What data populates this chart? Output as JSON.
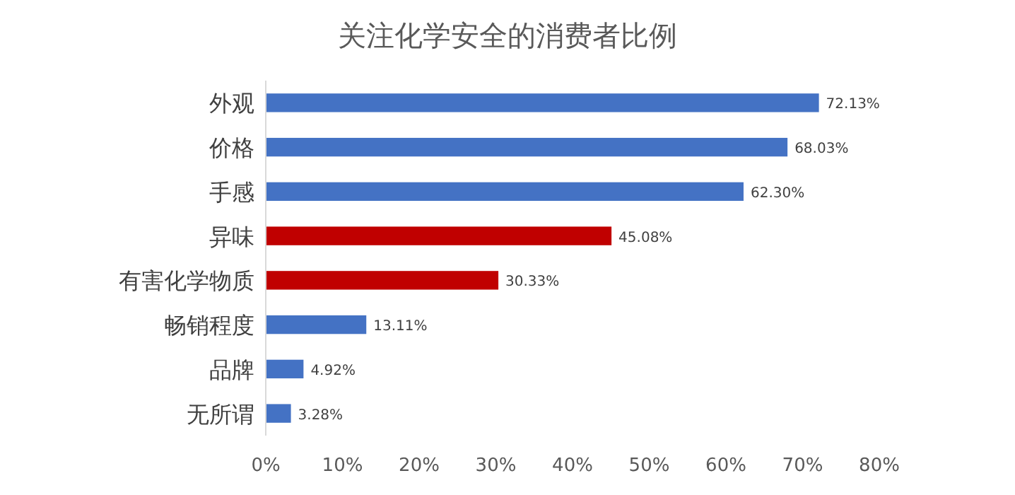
{
  "chart_data": {
    "type": "bar",
    "orientation": "horizontal",
    "title": "关注化学安全的消费者比例",
    "categories": [
      "外观",
      "价格",
      "手感",
      "异味",
      "有害化学物质",
      "畅销程度",
      "品牌",
      "无所谓"
    ],
    "values": [
      72.13,
      68.03,
      62.3,
      45.08,
      30.33,
      13.11,
      4.92,
      3.28
    ],
    "colors": [
      "#4472c4",
      "#4472c4",
      "#4472c4",
      "#c00000",
      "#c00000",
      "#4472c4",
      "#4472c4",
      "#4472c4"
    ],
    "value_labels": [
      "72.13%",
      "68.03%",
      "62.30%",
      "45.08%",
      "30.33%",
      "13.11%",
      "4.92%",
      "3.28%"
    ],
    "xlim": [
      0,
      80
    ],
    "xticks": [
      {
        "value": 0,
        "label": "0%"
      },
      {
        "value": 10,
        "label": "10%"
      },
      {
        "value": 20,
        "label": "20%"
      },
      {
        "value": 30,
        "label": "30%"
      },
      {
        "value": 40,
        "label": "40%"
      },
      {
        "value": 50,
        "label": "50%"
      },
      {
        "value": 60,
        "label": "60%"
      },
      {
        "value": 70,
        "label": "70%"
      },
      {
        "value": 80,
        "label": "80%"
      }
    ]
  }
}
